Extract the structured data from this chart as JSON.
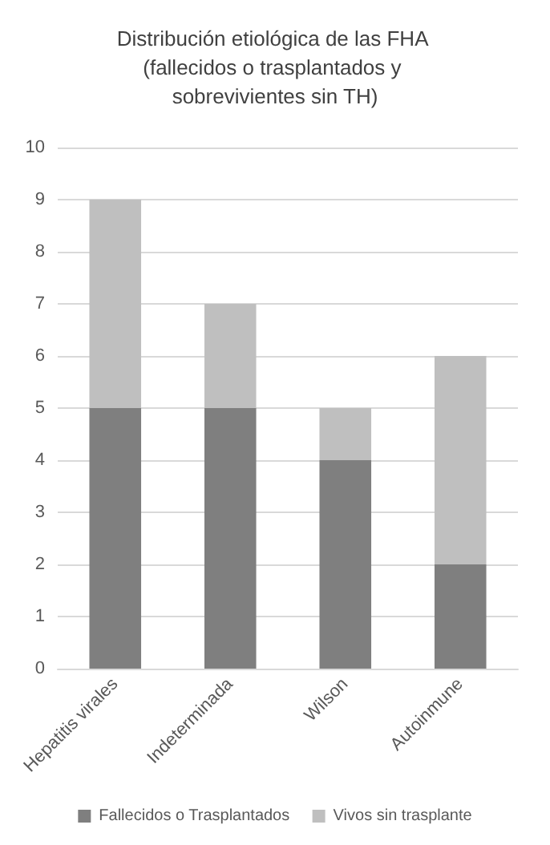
{
  "chart_data": {
    "type": "bar",
    "title": "Distribución etiológica de las FHA (fallecidos o trasplantados y sobrevivientes sin TH)",
    "categories": [
      "Hepatitis virales",
      "Indeterminada",
      "Wilson",
      "Autoinmune"
    ],
    "series": [
      {
        "name": "Fallecidos o Trasplantados",
        "color": "#7f7f7f",
        "values": [
          5,
          5,
          4,
          2
        ]
      },
      {
        "name": "Vivos sin trasplante",
        "color": "#bfbfbf",
        "values": [
          4,
          2,
          1,
          4
        ]
      }
    ],
    "stacked": true,
    "ylim": [
      0,
      10
    ],
    "yticks": [
      0,
      1,
      2,
      3,
      4,
      5,
      6,
      7,
      8,
      9,
      10
    ],
    "grid": "y",
    "legend": "bottom"
  }
}
